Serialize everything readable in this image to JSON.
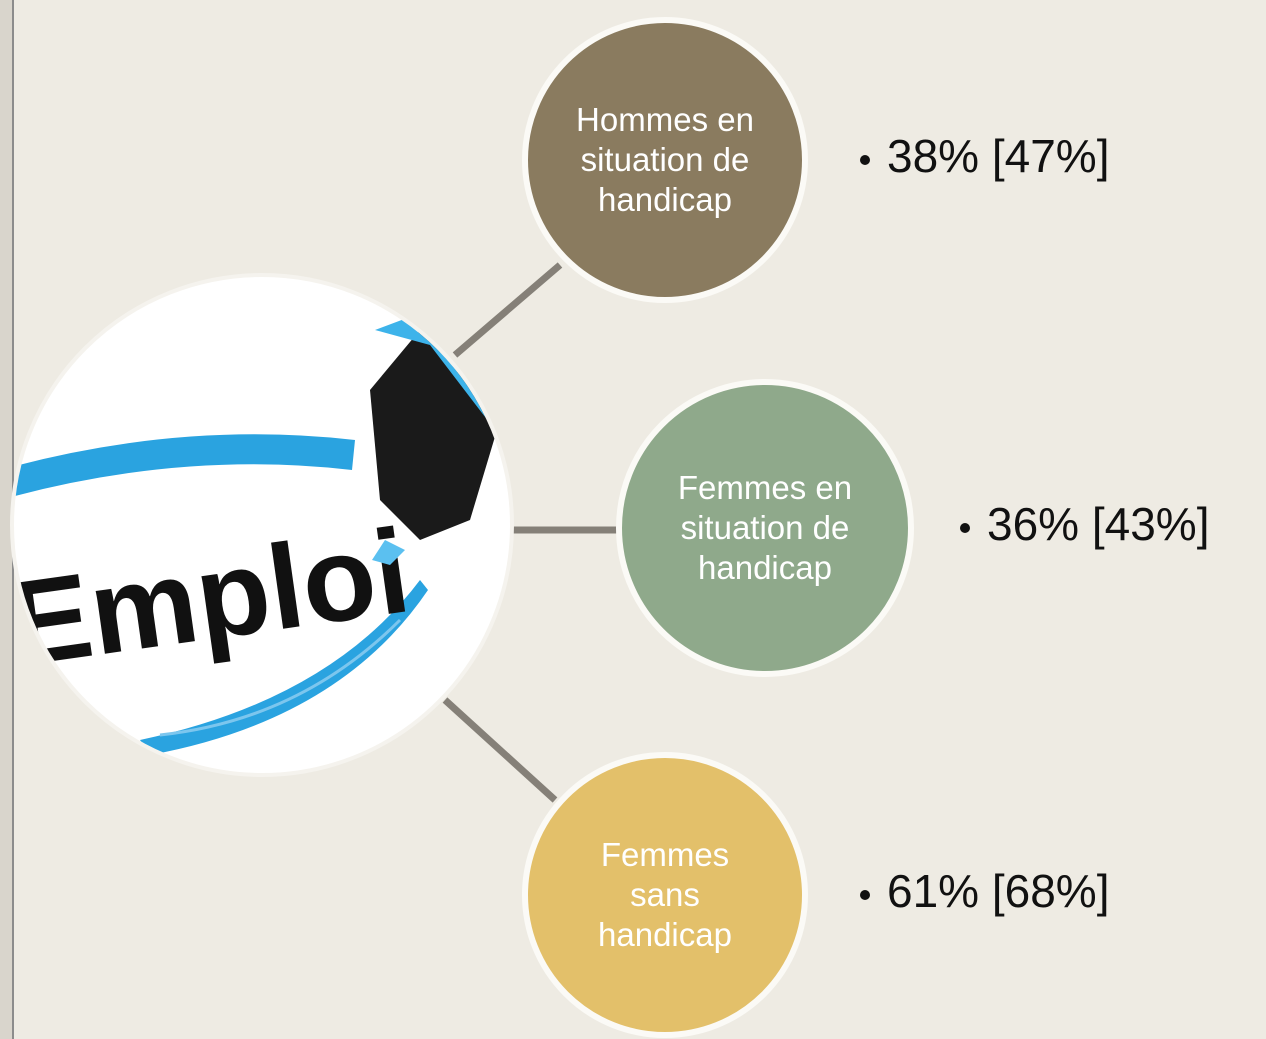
{
  "center": {
    "label": "Emploi"
  },
  "nodes": [
    {
      "lines": [
        "Hommes en",
        "situation de",
        "handicap"
      ],
      "stat": "38% [47%]",
      "color": "#8a7b5f"
    },
    {
      "lines": [
        "Femmes en",
        "situation de",
        "handicap"
      ],
      "stat": "36% [43%]",
      "color": "#8fa98b"
    },
    {
      "lines": [
        "Femmes",
        "sans",
        "handicap"
      ],
      "stat": "61% [68%]",
      "color": "#e3c06a"
    }
  ]
}
